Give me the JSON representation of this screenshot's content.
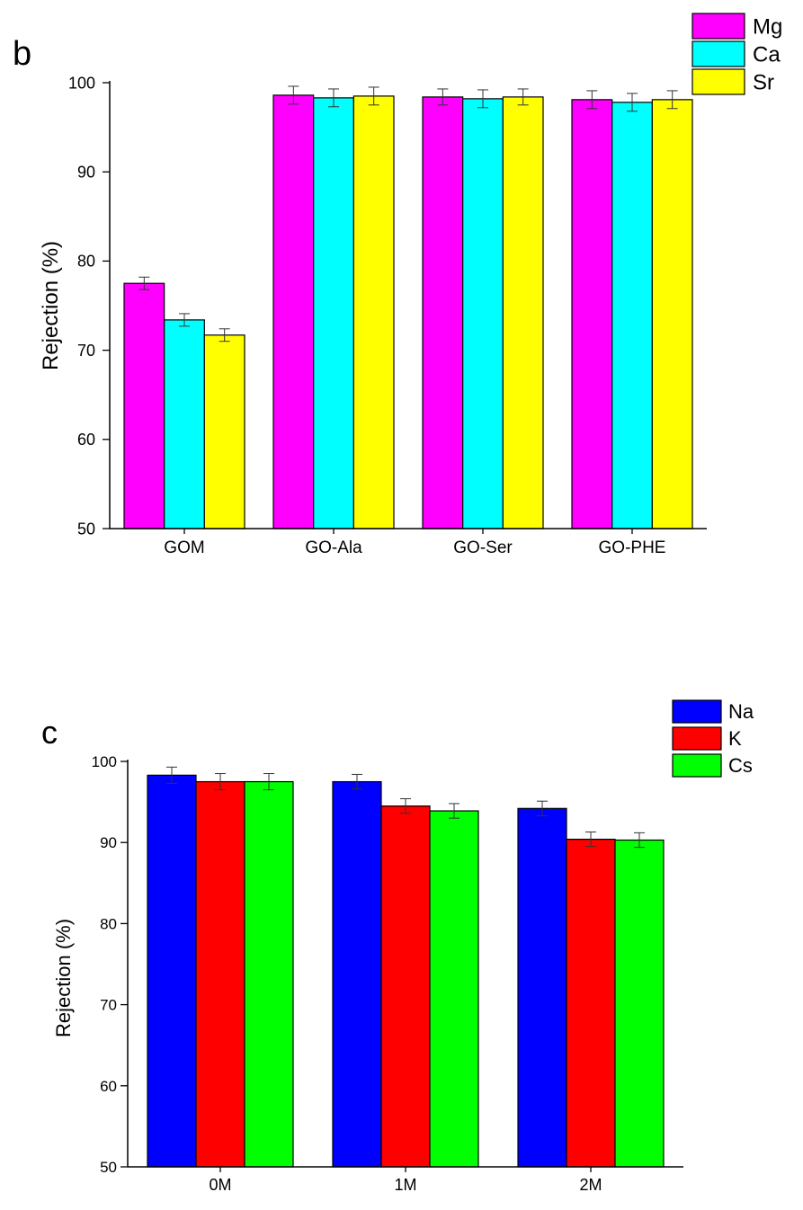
{
  "chart_data": [
    {
      "panel_label": "b",
      "type": "bar",
      "title": "",
      "xlabel": "",
      "ylabel": "Rejection (%)",
      "ylim": [
        50,
        100
      ],
      "yticks": [
        "50",
        "60",
        "70",
        "80",
        "90",
        "100"
      ],
      "grid": false,
      "legend_position": "top-right",
      "categories": [
        "GOM",
        "GO-Ala",
        "GO-Ser",
        "GO-PHE"
      ],
      "series": [
        {
          "name": "Mg",
          "color": "#ff00ff",
          "values": [
            77.5,
            98.6,
            98.4,
            98.1
          ],
          "errors": [
            0.7,
            1.0,
            0.9,
            1.0
          ]
        },
        {
          "name": "Ca",
          "color": "#00ffff",
          "values": [
            73.4,
            98.3,
            98.2,
            97.8
          ],
          "errors": [
            0.7,
            1.0,
            1.0,
            1.0
          ]
        },
        {
          "name": "Sr",
          "color": "#ffff00",
          "values": [
            71.7,
            98.5,
            98.4,
            98.1
          ],
          "errors": [
            0.7,
            1.0,
            0.9,
            1.0
          ]
        }
      ]
    },
    {
      "panel_label": "c",
      "type": "bar",
      "title": "",
      "xlabel": "",
      "ylabel": "Rejection (%)",
      "ylim": [
        50,
        100
      ],
      "yticks": [
        "50",
        "60",
        "70",
        "80",
        "90",
        "100"
      ],
      "grid": false,
      "legend_position": "top-right",
      "categories": [
        "0M",
        "1M",
        "2M"
      ],
      "series": [
        {
          "name": "Na",
          "color": "#0000ff",
          "values": [
            98.3,
            97.5,
            94.2
          ],
          "errors": [
            1.0,
            0.9,
            0.9
          ]
        },
        {
          "name": "K",
          "color": "#ff0000",
          "values": [
            97.5,
            94.5,
            90.4
          ],
          "errors": [
            1.0,
            0.9,
            0.9
          ]
        },
        {
          "name": "Cs",
          "color": "#00ff00",
          "values": [
            97.5,
            93.9,
            90.3
          ],
          "errors": [
            1.0,
            0.9,
            0.9
          ]
        }
      ]
    }
  ]
}
